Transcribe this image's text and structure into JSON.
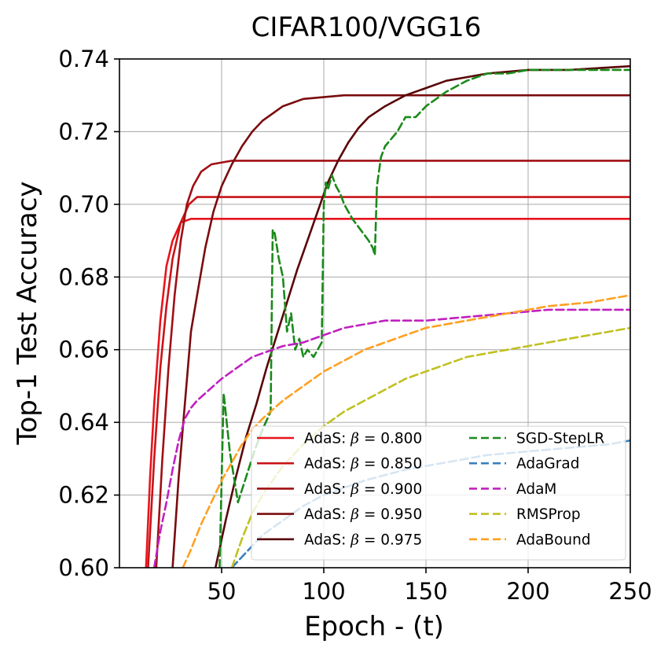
{
  "chart_data": {
    "type": "line",
    "title": "CIFAR100/VGG16",
    "xlabel": "Epoch - (t)",
    "ylabel": "Top-1 Test Accuracy",
    "xlim": [
      0,
      250
    ],
    "ylim": [
      0.6,
      0.74
    ],
    "xticks": [
      50,
      100,
      150,
      200,
      250
    ],
    "xtick_labels": [
      "50",
      "100",
      "150",
      "200",
      "250"
    ],
    "yticks": [
      0.6,
      0.62,
      0.64,
      0.66,
      0.68,
      0.7,
      0.72,
      0.74
    ],
    "ytick_labels": [
      "0.60",
      "0.62",
      "0.64",
      "0.66",
      "0.68",
      "0.70",
      "0.72",
      "0.74"
    ],
    "grid": true,
    "legend_position": "lower-right",
    "series": [
      {
        "name": "AdaS: β = 0.800",
        "label_prefix": "AdaS: ",
        "label_value": "0.800",
        "color": "#e8141c",
        "dashed": false,
        "x": [
          13,
          15,
          17,
          20,
          23,
          26,
          30,
          35,
          40,
          60,
          100,
          150,
          200,
          250
        ],
        "y": [
          0.6,
          0.625,
          0.645,
          0.668,
          0.683,
          0.69,
          0.695,
          0.696,
          0.696,
          0.696,
          0.696,
          0.696,
          0.696,
          0.696
        ]
      },
      {
        "name": "AdaS: β = 0.850",
        "label_prefix": "AdaS: ",
        "label_value": "0.850",
        "color": "#c81417",
        "dashed": false,
        "x": [
          14,
          17,
          20,
          23,
          26,
          30,
          34,
          38,
          45,
          60,
          100,
          150,
          200,
          250
        ],
        "y": [
          0.6,
          0.63,
          0.655,
          0.672,
          0.685,
          0.695,
          0.7,
          0.702,
          0.702,
          0.702,
          0.702,
          0.702,
          0.702,
          0.702
        ]
      },
      {
        "name": "AdaS: β = 0.900",
        "label_prefix": "AdaS: ",
        "label_value": "0.900",
        "color": "#a00f14",
        "dashed": false,
        "x": [
          18,
          21,
          24,
          27,
          30,
          33,
          36,
          40,
          45,
          55,
          80,
          120,
          160,
          200,
          250
        ],
        "y": [
          0.6,
          0.63,
          0.655,
          0.675,
          0.69,
          0.7,
          0.705,
          0.709,
          0.711,
          0.712,
          0.712,
          0.712,
          0.712,
          0.712,
          0.712
        ]
      },
      {
        "name": "AdaS: β = 0.950",
        "label_prefix": "AdaS: ",
        "label_value": "0.950",
        "color": "#7a0b0e",
        "dashed": false,
        "x": [
          26,
          29,
          32,
          35,
          38,
          42,
          46,
          50,
          55,
          60,
          65,
          70,
          75,
          80,
          90,
          110,
          150,
          200,
          250
        ],
        "y": [
          0.6,
          0.625,
          0.645,
          0.665,
          0.675,
          0.688,
          0.698,
          0.705,
          0.711,
          0.716,
          0.72,
          0.723,
          0.725,
          0.727,
          0.729,
          0.73,
          0.73,
          0.73,
          0.73
        ]
      },
      {
        "name": "AdaS: β = 0.975",
        "label_prefix": "AdaS: ",
        "label_value": "0.975",
        "color": "#5a0508",
        "dashed": false,
        "x": [
          47,
          52,
          57,
          62,
          67,
          72,
          77,
          82,
          87,
          92,
          97,
          102,
          107,
          112,
          117,
          122,
          130,
          140,
          150,
          160,
          170,
          180,
          200,
          220,
          250
        ],
        "y": [
          0.6,
          0.613,
          0.625,
          0.636,
          0.645,
          0.655,
          0.664,
          0.673,
          0.682,
          0.69,
          0.698,
          0.706,
          0.712,
          0.717,
          0.721,
          0.724,
          0.727,
          0.73,
          0.732,
          0.734,
          0.735,
          0.736,
          0.737,
          0.737,
          0.738
        ]
      },
      {
        "name": "SGD-StepLR",
        "color": "#1a8a1a",
        "dashed": true,
        "x": [
          49,
          51,
          54,
          58,
          62,
          66,
          70,
          74,
          75,
          76,
          78,
          80,
          82,
          84,
          86,
          88,
          90,
          92,
          95,
          99,
          100,
          101,
          102,
          104,
          106,
          108,
          110,
          114,
          118,
          122,
          124,
          125,
          126,
          128,
          130,
          133,
          136,
          140,
          145,
          150,
          160,
          170,
          180,
          190,
          200,
          220,
          250
        ],
        "y": [
          0.6,
          0.648,
          0.632,
          0.618,
          0.625,
          0.632,
          0.638,
          0.643,
          0.693,
          0.692,
          0.685,
          0.68,
          0.665,
          0.67,
          0.66,
          0.663,
          0.658,
          0.66,
          0.658,
          0.662,
          0.7,
          0.706,
          0.704,
          0.708,
          0.705,
          0.703,
          0.7,
          0.696,
          0.693,
          0.69,
          0.688,
          0.686,
          0.705,
          0.713,
          0.716,
          0.718,
          0.72,
          0.724,
          0.724,
          0.727,
          0.731,
          0.734,
          0.736,
          0.736,
          0.737,
          0.737,
          0.737
        ]
      },
      {
        "name": "AdaGrad",
        "color": "#3a7fbf",
        "dashed": true,
        "x": [
          55,
          60,
          70,
          80,
          90,
          100,
          120,
          140,
          160,
          180,
          200,
          220,
          240,
          250
        ],
        "y": [
          0.6,
          0.603,
          0.609,
          0.613,
          0.617,
          0.62,
          0.624,
          0.627,
          0.629,
          0.631,
          0.632,
          0.633,
          0.634,
          0.635
        ]
      },
      {
        "name": "AdaM",
        "color": "#c020c0",
        "dashed": true,
        "x": [
          17,
          20,
          23,
          26,
          29,
          32,
          35,
          38,
          42,
          46,
          50,
          55,
          60,
          65,
          70,
          80,
          90,
          100,
          110,
          120,
          130,
          140,
          150,
          170,
          190,
          210,
          230,
          250
        ],
        "y": [
          0.6,
          0.61,
          0.618,
          0.627,
          0.635,
          0.641,
          0.644,
          0.646,
          0.648,
          0.65,
          0.652,
          0.654,
          0.656,
          0.658,
          0.659,
          0.661,
          0.662,
          0.664,
          0.666,
          0.667,
          0.668,
          0.668,
          0.668,
          0.669,
          0.67,
          0.671,
          0.671,
          0.671
        ]
      },
      {
        "name": "RMSProp",
        "color": "#c0c020",
        "dashed": true,
        "x": [
          55,
          60,
          65,
          70,
          80,
          90,
          100,
          110,
          120,
          130,
          140,
          150,
          160,
          170,
          180,
          190,
          200,
          210,
          220,
          230,
          240,
          250
        ],
        "y": [
          0.6,
          0.608,
          0.615,
          0.62,
          0.628,
          0.634,
          0.639,
          0.643,
          0.646,
          0.649,
          0.652,
          0.654,
          0.656,
          0.658,
          0.659,
          0.66,
          0.661,
          0.662,
          0.663,
          0.664,
          0.665,
          0.666
        ]
      },
      {
        "name": "AdaBound",
        "color": "#ffa020",
        "dashed": true,
        "x": [
          31,
          35,
          40,
          45,
          50,
          55,
          60,
          65,
          70,
          80,
          90,
          100,
          110,
          120,
          130,
          140,
          150,
          170,
          190,
          210,
          230,
          250
        ],
        "y": [
          0.6,
          0.605,
          0.612,
          0.618,
          0.624,
          0.629,
          0.634,
          0.638,
          0.641,
          0.646,
          0.65,
          0.654,
          0.657,
          0.66,
          0.662,
          0.664,
          0.666,
          0.668,
          0.67,
          0.672,
          0.673,
          0.675
        ]
      }
    ]
  }
}
